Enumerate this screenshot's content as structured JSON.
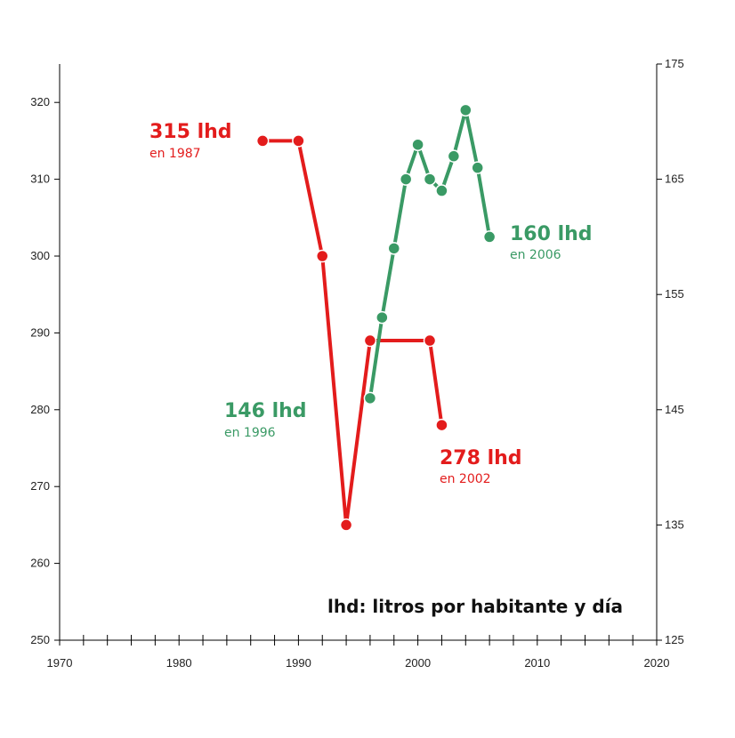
{
  "chart_data": {
    "type": "line",
    "x_range": [
      1970,
      2020
    ],
    "x_ticks": [
      1970,
      1980,
      1990,
      2000,
      2010,
      2020
    ],
    "y_left": {
      "range": [
        250,
        325
      ],
      "ticks": [
        250,
        260,
        270,
        280,
        290,
        300,
        310,
        320
      ]
    },
    "y_right": {
      "range": [
        125,
        175
      ],
      "ticks": [
        125,
        135,
        145,
        155,
        165,
        175
      ]
    },
    "series": [
      {
        "axis": "left",
        "color": "#e31c1c",
        "x": [
          1987,
          1990,
          1992,
          1994,
          1996,
          2001,
          2002
        ],
        "y": [
          315,
          315,
          300,
          265,
          289,
          289,
          278
        ]
      },
      {
        "axis": "right",
        "color": "#3a9a65",
        "x": [
          1996,
          1997,
          1998,
          1999,
          2000,
          2001,
          2002,
          2003,
          2004,
          2005,
          2006
        ],
        "y": [
          146,
          153,
          159,
          165,
          168,
          165,
          164,
          167,
          171,
          166,
          160
        ]
      }
    ],
    "annotations": [
      {
        "big": "315 lhd",
        "small": "en 1987",
        "color": "#e31c1c"
      },
      {
        "big": "160 lhd",
        "small": "en 2006",
        "color": "#3a9a65"
      },
      {
        "big": "146 lhd",
        "small": "en 1996",
        "color": "#3a9a65"
      },
      {
        "big": "278 lhd",
        "small": "en 2002",
        "color": "#e31c1c"
      }
    ],
    "note": "lhd: litros por habitante y día"
  }
}
